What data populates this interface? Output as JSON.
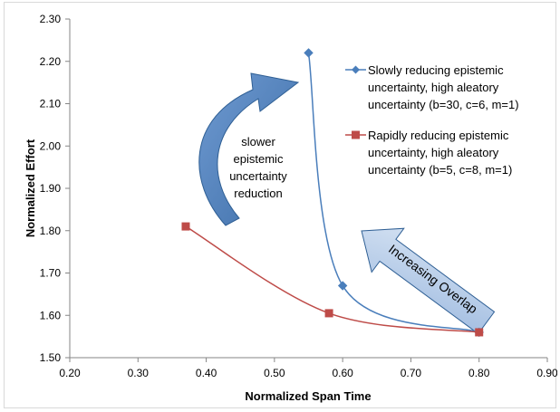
{
  "chart_data": {
    "type": "scatter",
    "xlabel": "Normalized Span Time",
    "ylabel": "Normalized Effort",
    "xlim": [
      0.2,
      0.9
    ],
    "ylim": [
      1.5,
      2.3
    ],
    "x_ticks": [
      "0.20",
      "0.30",
      "0.40",
      "0.50",
      "0.60",
      "0.70",
      "0.80",
      "0.90"
    ],
    "y_ticks": [
      "1.50",
      "1.60",
      "1.70",
      "1.80",
      "1.90",
      "2.00",
      "2.10",
      "2.20",
      "2.30"
    ],
    "grid": false,
    "legend_position": "right",
    "series": [
      {
        "name_lines": [
          "Slowly reducing epistemic",
          "uncertainty, high aleatory",
          "uncertainty (b=30, c=6, m=1)"
        ],
        "color": "#4a7ebb",
        "marker": "diamond",
        "points": [
          {
            "x": 0.55,
            "y": 2.22
          },
          {
            "x": 0.6,
            "y": 1.67
          },
          {
            "x": 0.8,
            "y": 1.56
          }
        ]
      },
      {
        "name_lines": [
          "Rapidly reducing epistemic",
          "uncertainty, high aleatory",
          "uncertainty (b=5, c=8, m=1)"
        ],
        "color": "#be4b48",
        "marker": "square",
        "points": [
          {
            "x": 0.37,
            "y": 1.81
          },
          {
            "x": 0.58,
            "y": 1.605
          },
          {
            "x": 0.8,
            "y": 1.56
          }
        ]
      }
    ],
    "annotations": [
      {
        "lines": [
          "slower",
          "epistemic",
          "uncertainty",
          "reduction"
        ]
      },
      {
        "lines": [
          "Increasing Overlap"
        ]
      }
    ]
  },
  "colors": {
    "arrow_fill": "#5b87c1",
    "arrow_stroke": "#2f5f94",
    "overlap_fill": "#b9cde8"
  }
}
